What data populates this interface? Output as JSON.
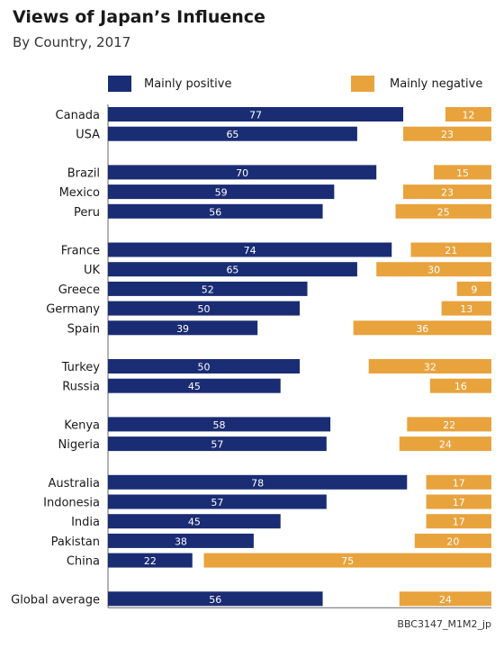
{
  "title": "Views of Japan’s Influence",
  "subtitle": "By Country, 2017",
  "footer": "BBC3147_M1M2_jp",
  "colors": {
    "positive": "#1a2c73",
    "negative": "#e8a33d",
    "axis": "#666666"
  },
  "chart_data": {
    "type": "bar",
    "orientation": "horizontal",
    "xlim": [
      0,
      100
    ],
    "grid": false,
    "legend_position": "top",
    "series": [
      {
        "name": "Mainly positive",
        "color": "#1a2c73",
        "values": [
          77,
          65,
          70,
          59,
          56,
          74,
          65,
          52,
          50,
          39,
          50,
          45,
          58,
          57,
          78,
          57,
          45,
          38,
          22,
          56
        ]
      },
      {
        "name": "Mainly negative",
        "color": "#e8a33d",
        "values": [
          12,
          23,
          15,
          23,
          25,
          21,
          30,
          9,
          13,
          36,
          32,
          16,
          22,
          24,
          17,
          17,
          17,
          20,
          75,
          24
        ]
      }
    ],
    "categories": [
      "Canada",
      "USA",
      "Brazil",
      "Mexico",
      "Peru",
      "France",
      "UK",
      "Greece",
      "Germany",
      "Spain",
      "Turkey",
      "Russia",
      "Kenya",
      "Nigeria",
      "Australia",
      "Indonesia",
      "India",
      "Pakistan",
      "China",
      "Global average"
    ]
  }
}
